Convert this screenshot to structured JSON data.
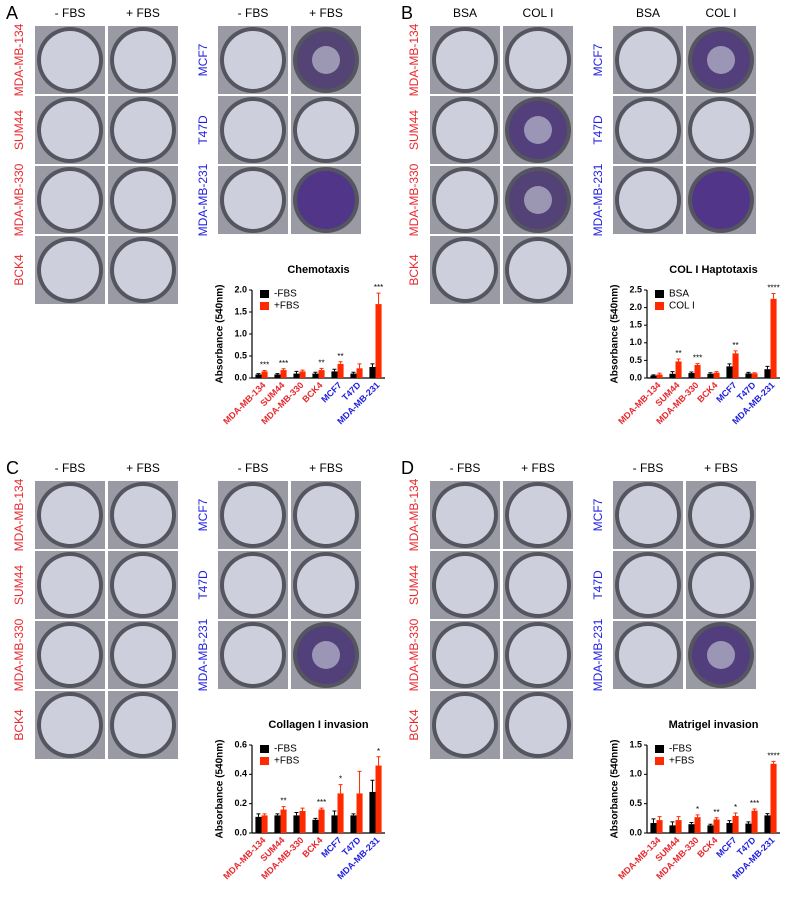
{
  "panels": [
    {
      "letter": "A",
      "left_columns": [
        "- FBS",
        "+ FBS"
      ],
      "left_rows": [
        "MDA-MB-134",
        "SUM44",
        "MDA-MB-330",
        "BCK4"
      ],
      "right_columns": [
        "- FBS",
        "+ FBS"
      ],
      "right_rows": [
        "MCF7",
        "T47D",
        "MDA-MB-231"
      ]
    },
    {
      "letter": "B",
      "left_columns": [
        "BSA",
        "COL I"
      ],
      "left_rows": [
        "MDA-MB-134",
        "SUM44",
        "MDA-MB-330",
        "BCK4"
      ],
      "right_columns": [
        "BSA",
        "COL I"
      ],
      "right_rows": [
        "MCF7",
        "T47D",
        "MDA-MB-231"
      ]
    },
    {
      "letter": "C",
      "left_columns": [
        "- FBS",
        "+ FBS"
      ],
      "left_rows": [
        "MDA-MB-134",
        "SUM44",
        "MDA-MB-330",
        "BCK4"
      ],
      "right_columns": [
        "- FBS",
        "+ FBS"
      ],
      "right_rows": [
        "MCF7",
        "T47D",
        "MDA-MB-231"
      ]
    },
    {
      "letter": "D",
      "left_columns": [
        "- FBS",
        "+ FBS"
      ],
      "left_rows": [
        "MDA-MB-134",
        "SUM44",
        "MDA-MB-330",
        "BCK4"
      ],
      "right_columns": [
        "- FBS",
        "+ FBS"
      ],
      "right_rows": [
        "MCF7",
        "T47D",
        "MDA-MB-231"
      ]
    }
  ],
  "chart_data": [
    {
      "type": "bar",
      "title": "Chemotaxis",
      "y_label": "Absorbance (540nm)",
      "categories": [
        "MDA-MB-134",
        "SUM44",
        "MDA-MB-330",
        "BCK4",
        "MCF7",
        "T47D",
        "MDA-MB-231"
      ],
      "category_colors": [
        "#e8292f",
        "#e8292f",
        "#e8292f",
        "#e8292f",
        "#1f1fe0",
        "#1f1fe0",
        "#1f1fe0"
      ],
      "series": [
        {
          "name": "-FBS",
          "color": "#000000",
          "values": [
            0.08,
            0.08,
            0.1,
            0.1,
            0.15,
            0.1,
            0.25
          ],
          "errors": [
            0.02,
            0.02,
            0.05,
            0.03,
            0.05,
            0.03,
            0.07
          ]
        },
        {
          "name": "+FBS",
          "color": "#ff2a00",
          "values": [
            0.15,
            0.18,
            0.15,
            0.18,
            0.32,
            0.22,
            1.68
          ],
          "errors": [
            0.02,
            0.03,
            0.03,
            0.04,
            0.05,
            0.1,
            0.25
          ]
        }
      ],
      "significance": [
        "***",
        "***",
        null,
        "**",
        "**",
        null,
        "***"
      ],
      "ylim": [
        0,
        2
      ],
      "yticks": [
        {
          "value": 0,
          "label": "0.0"
        },
        {
          "value": 0.5,
          "label": "0.5"
        },
        {
          "value": 1,
          "label": "1.0"
        },
        {
          "value": 1.5,
          "label": "1.5"
        },
        {
          "value": 2,
          "label": "2.0"
        }
      ],
      "legend": "top-left"
    },
    {
      "type": "bar",
      "title": "COL I Haptotaxis",
      "y_label": "Absorbance (540nm)",
      "categories": [
        "MDA-MB-134",
        "SUM44",
        "MDA-MB-330",
        "BCK4",
        "MCF7",
        "T47D",
        "MDA-MB-231"
      ],
      "category_colors": [
        "#e8292f",
        "#e8292f",
        "#e8292f",
        "#e8292f",
        "#1f1fe0",
        "#1f1fe0",
        "#1f1fe0"
      ],
      "series": [
        {
          "name": "BSA",
          "color": "#000000",
          "values": [
            0.07,
            0.12,
            0.14,
            0.12,
            0.33,
            0.13,
            0.25
          ],
          "errors": [
            0.02,
            0.06,
            0.03,
            0.03,
            0.07,
            0.03,
            0.08
          ]
        },
        {
          "name": "COL I",
          "color": "#ff2a00",
          "values": [
            0.1,
            0.47,
            0.37,
            0.15,
            0.7,
            0.13,
            2.25
          ],
          "errors": [
            0.04,
            0.07,
            0.04,
            0.03,
            0.07,
            0.02,
            0.15
          ]
        }
      ],
      "significance": [
        null,
        "**",
        "***",
        null,
        "**",
        null,
        "****"
      ],
      "ylim": [
        0,
        2.5
      ],
      "yticks": [
        {
          "value": 0,
          "label": "0.0"
        },
        {
          "value": 0.5,
          "label": "0.5"
        },
        {
          "value": 1,
          "label": "1.0"
        },
        {
          "value": 1.5,
          "label": "1.5"
        },
        {
          "value": 2,
          "label": "2.0"
        },
        {
          "value": 2.5,
          "label": "2.5"
        }
      ],
      "legend": "top-left"
    },
    {
      "type": "bar",
      "title": "Collagen I invasion",
      "y_label": "Absorbance (540nm)",
      "categories": [
        "MDA-MB-134",
        "SUM44",
        "MDA-MB-330",
        "BCK4",
        "MCF7",
        "T47D",
        "MDA-MB-231"
      ],
      "category_colors": [
        "#e8292f",
        "#e8292f",
        "#e8292f",
        "#e8292f",
        "#1f1fe0",
        "#1f1fe0",
        "#1f1fe0"
      ],
      "series": [
        {
          "name": "-FBS",
          "color": "#000000",
          "values": [
            0.11,
            0.12,
            0.12,
            0.09,
            0.12,
            0.12,
            0.28
          ],
          "errors": [
            0.02,
            0.01,
            0.02,
            0.01,
            0.03,
            0.01,
            0.08
          ]
        },
        {
          "name": "+FBS",
          "color": "#ff2a00",
          "values": [
            0.12,
            0.16,
            0.15,
            0.16,
            0.27,
            0.27,
            0.46
          ],
          "errors": [
            0.01,
            0.02,
            0.02,
            0.01,
            0.06,
            0.15,
            0.06
          ]
        }
      ],
      "significance": [
        null,
        "**",
        null,
        "***",
        "*",
        null,
        "*"
      ],
      "ylim": [
        0,
        0.6
      ],
      "yticks": [
        {
          "value": 0,
          "label": "0.0"
        },
        0.2,
        0.4,
        0.6
      ],
      "legend": "top-left"
    },
    {
      "type": "bar",
      "title": "Matrigel invasion",
      "y_label": "Absorbance (540nm)",
      "categories": [
        "MDA-MB-134",
        "SUM44",
        "MDA-MB-330",
        "BCK4",
        "MCF7",
        "T47D",
        "MDA-MB-231"
      ],
      "category_colors": [
        "#e8292f",
        "#e8292f",
        "#e8292f",
        "#e8292f",
        "#1f1fe0",
        "#1f1fe0",
        "#1f1fe0"
      ],
      "series": [
        {
          "name": "-FBS",
          "color": "#000000",
          "values": [
            0.17,
            0.13,
            0.15,
            0.13,
            0.17,
            0.16,
            0.3
          ],
          "errors": [
            0.07,
            0.06,
            0.03,
            0.02,
            0.04,
            0.03,
            0.03
          ]
        },
        {
          "name": "+FBS",
          "color": "#ff2a00",
          "values": [
            0.22,
            0.22,
            0.27,
            0.23,
            0.29,
            0.38,
            1.18
          ],
          "errors": [
            0.06,
            0.06,
            0.04,
            0.03,
            0.05,
            0.03,
            0.04
          ]
        }
      ],
      "significance": [
        null,
        null,
        "*",
        "**",
        "*",
        "***",
        "****"
      ],
      "ylim": [
        0,
        1.5
      ],
      "yticks": [
        {
          "value": 0,
          "label": "0.0"
        },
        {
          "value": 0.5,
          "label": "0.5"
        },
        {
          "value": 1,
          "label": "1.0"
        },
        {
          "value": 1.5,
          "label": "1.5"
        }
      ],
      "legend": "top-left"
    }
  ]
}
